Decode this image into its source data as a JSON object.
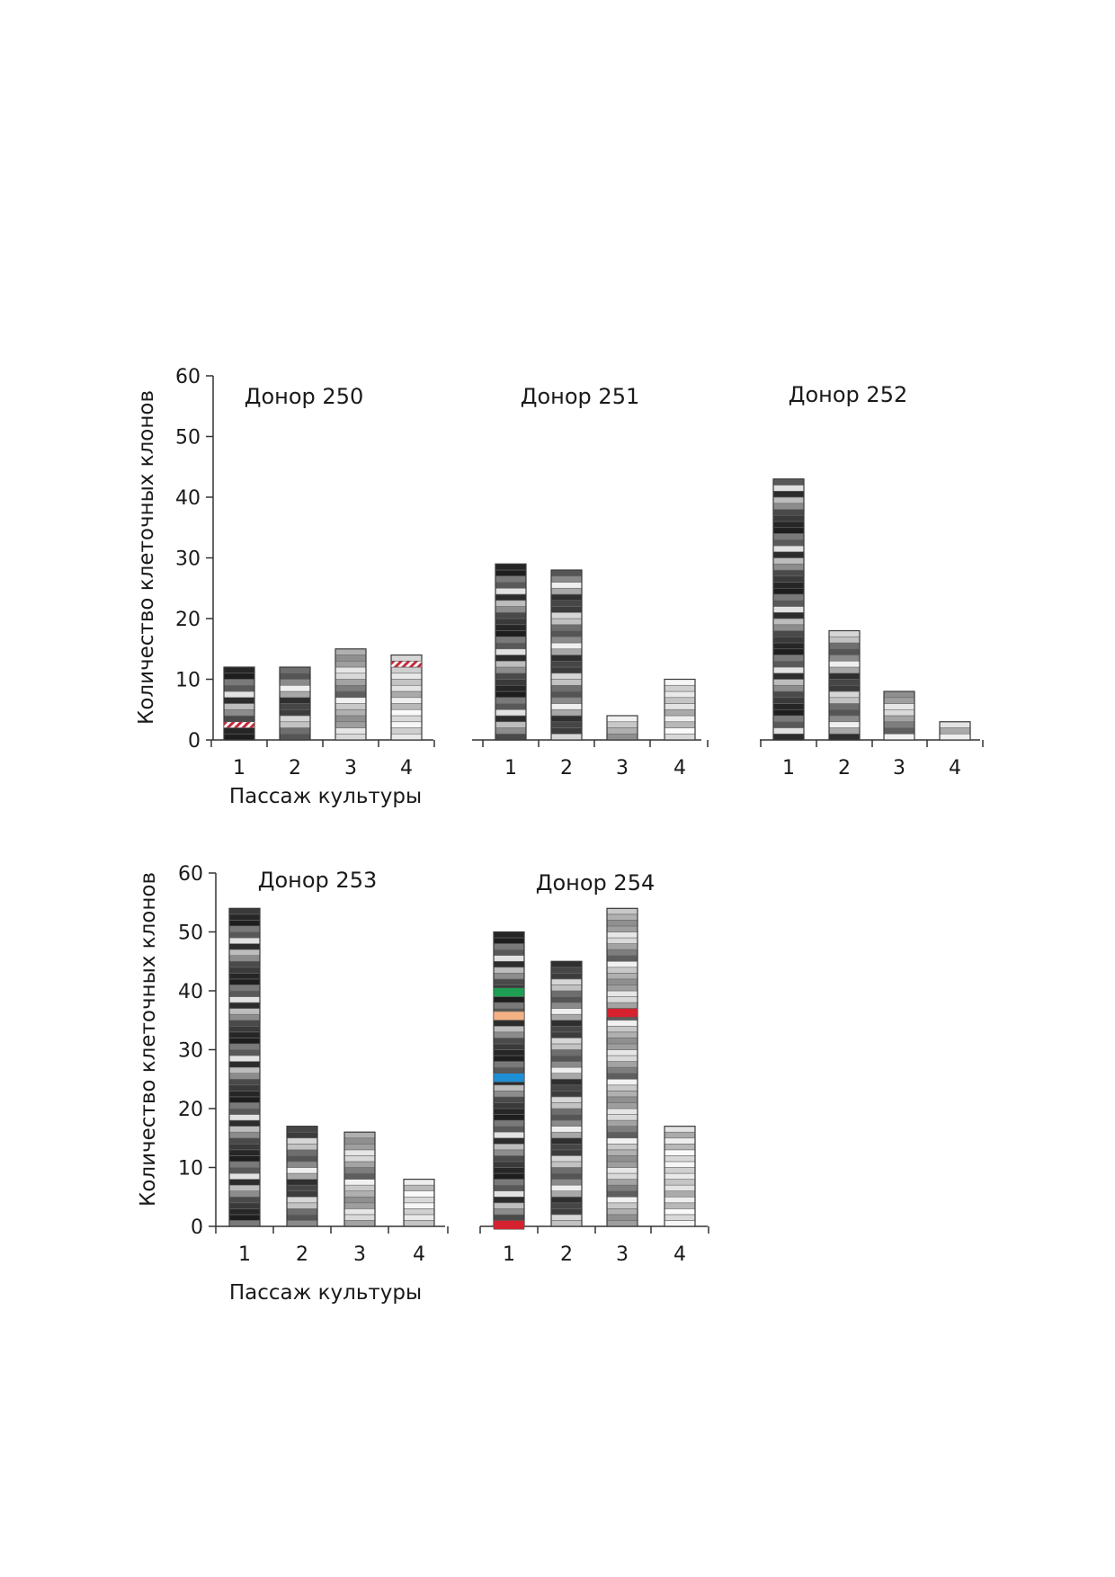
{
  "figure": {
    "ylabel": "Количество клеточных клонов",
    "xlabel": "Пассаж культуры"
  },
  "chart_data": [
    {
      "type": "bar",
      "stacked": true,
      "title": "Донор 250",
      "categories": [
        "1",
        "2",
        "3",
        "4"
      ],
      "values": [
        12,
        12,
        15,
        14
      ],
      "ylim": [
        0,
        60
      ],
      "yticks": [
        0,
        10,
        20,
        30,
        40,
        50,
        60
      ],
      "ylabel": "Количество клеточных клонов",
      "xlabel": "Пассаж культуры",
      "highlights": [
        {
          "category": "1",
          "level": 2.5,
          "color": "#c8283a",
          "pattern": "hatched"
        },
        {
          "category": "4",
          "level": 12.5,
          "color": "#c8283a",
          "pattern": "hatched"
        }
      ]
    },
    {
      "type": "bar",
      "stacked": true,
      "title": "Донор 251",
      "categories": [
        "1",
        "2",
        "3",
        "4"
      ],
      "values": [
        29,
        28,
        4,
        10
      ],
      "ylim": [
        0,
        60
      ]
    },
    {
      "type": "bar",
      "stacked": true,
      "title": "Донор 252",
      "categories": [
        "1",
        "2",
        "3",
        "4"
      ],
      "values": [
        43,
        18,
        8,
        3
      ],
      "ylim": [
        0,
        60
      ]
    },
    {
      "type": "bar",
      "stacked": true,
      "title": "Донор 253",
      "categories": [
        "1",
        "2",
        "3",
        "4"
      ],
      "values": [
        54,
        17,
        16,
        8
      ],
      "ylim": [
        0,
        60
      ],
      "yticks": [
        0,
        10,
        20,
        30,
        40,
        50,
        60
      ],
      "ylabel": "Количество клеточных клонов",
      "xlabel": "Пассаж культуры"
    },
    {
      "type": "bar",
      "stacked": true,
      "title": "Донор 254",
      "categories": [
        "1",
        "2",
        "3",
        "4"
      ],
      "values": [
        50,
        45,
        54,
        17
      ],
      "ylim": [
        0,
        60
      ],
      "highlights": [
        {
          "category": "1",
          "level": 0.5,
          "color": "#d6222e",
          "pattern": "solid"
        },
        {
          "category": "1",
          "level": 25.5,
          "color": "#1f8fd6",
          "pattern": "solid"
        },
        {
          "category": "1",
          "level": 36,
          "color": "#f4b183",
          "pattern": "solid"
        },
        {
          "category": "1",
          "level": 40,
          "color": "#1e9e52",
          "pattern": "solid"
        },
        {
          "category": "3",
          "level": 36.5,
          "color": "#d6222e",
          "pattern": "solid"
        }
      ]
    }
  ]
}
